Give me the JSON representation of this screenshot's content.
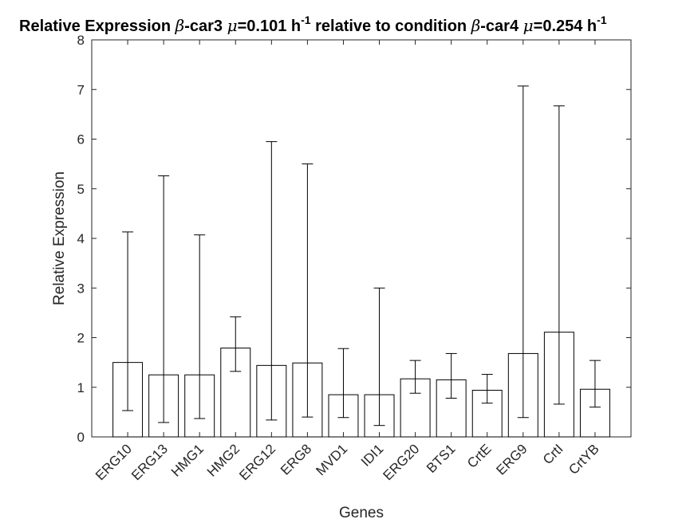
{
  "chart_data": {
    "type": "bar",
    "title_parts": {
      "prefix": "Relative Expression ",
      "beta1": "β",
      "cond1": "-car3 ",
      "mu1": "μ",
      "rate1": "=0.101 h",
      "exp1": "-1",
      "middle": " relative to condition ",
      "beta2": "β",
      "cond2": "-car4 ",
      "mu2": "μ",
      "rate2": "=0.254 h",
      "exp2": "-1"
    },
    "xlabel": "Genes",
    "ylabel": "Relative Expression",
    "ylim": [
      0,
      8
    ],
    "yticks": [
      0,
      1,
      2,
      3,
      4,
      5,
      6,
      7,
      8
    ],
    "categories": [
      "ERG10",
      "ERG13",
      "HMG1",
      "HMG2",
      "ERG12",
      "ERG8",
      "MVD1",
      "IDI1",
      "ERG20",
      "BTS1",
      "CrtE",
      "ERG9",
      "CrtI",
      "CrtYB"
    ],
    "values": [
      1.5,
      1.25,
      1.25,
      1.79,
      1.44,
      1.49,
      0.85,
      0.85,
      1.17,
      1.15,
      0.94,
      1.68,
      2.11,
      0.96
    ],
    "error_low": [
      0.53,
      0.29,
      0.37,
      1.32,
      0.34,
      0.4,
      0.39,
      0.23,
      0.88,
      0.78,
      0.68,
      0.39,
      0.66,
      0.6
    ],
    "error_high": [
      4.13,
      5.26,
      4.07,
      2.42,
      5.95,
      5.5,
      1.78,
      3.0,
      1.54,
      1.68,
      1.26,
      7.07,
      6.67,
      1.54
    ],
    "grid": false,
    "legend": "none",
    "colors": {
      "bar_fill": "#ffffff",
      "bar_edge": "#000000",
      "axis": "#262626",
      "background": "#ffffff"
    }
  }
}
